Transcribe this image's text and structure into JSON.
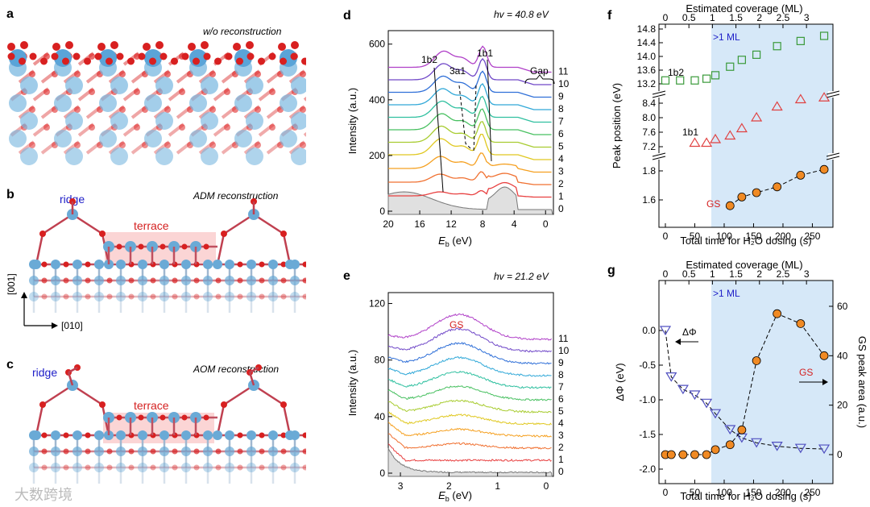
{
  "panels": {
    "a": {
      "label": "a",
      "title": "w/o reconstruction"
    },
    "b": {
      "label": "b",
      "title": "ADM reconstruction",
      "ridge": "ridge",
      "terrace": "terrace",
      "axis_v": "[001]",
      "axis_h": "[010]"
    },
    "c": {
      "label": "c",
      "title": "AOM reconstruction",
      "ridge": "ridge",
      "terrace": "terrace"
    },
    "d": {
      "label": "d",
      "hv": "hv = 40.8 eV",
      "peaks": [
        "1b2",
        "3a1",
        "1b1"
      ],
      "gap": "Gap",
      "ylabel": "Intensity (a.u.)",
      "xlabel": "E",
      "xlabel_sub": "b",
      "xlabel_unit": " (eV)",
      "yticks": [
        "0",
        "200",
        "400",
        "600"
      ],
      "xticks": [
        "20",
        "16",
        "12",
        "8",
        "4",
        "0"
      ],
      "curve_labels": [
        "0",
        "1",
        "2",
        "3",
        "4",
        "5",
        "6",
        "7",
        "8",
        "9",
        "10",
        "11"
      ]
    },
    "e": {
      "label": "e",
      "hv": "hv = 21.2 eV",
      "gs": "GS",
      "ylabel": "Intensity (a.u.)",
      "xlabel": "E",
      "xlabel_sub": "b",
      "xlabel_unit": " (eV)",
      "yticks": [
        "0",
        "40",
        "80",
        "120"
      ],
      "xticks": [
        "3",
        "2",
        "1",
        "0"
      ],
      "curve_labels": [
        "0",
        "1",
        "2",
        "3",
        "4",
        "5",
        "6",
        "7",
        "8",
        "9",
        "10",
        "11"
      ]
    },
    "f": {
      "label": "f",
      "top_title": "Estimated coverage (ML)",
      "top_ticks": [
        "0",
        "0.5",
        "1",
        "1.5",
        "2",
        "2.5",
        "3"
      ],
      "region": ">1 ML",
      "ylabel": "Peak position (eV)",
      "xlabel": "Total time for H₂O dosing (s)",
      "xticks": [
        "0",
        "50",
        "100",
        "150",
        "200",
        "250"
      ],
      "yticks_top": [
        "13.2",
        "13.6",
        "14.0",
        "14.4",
        "14.8"
      ],
      "yticks_mid": [
        "7.2",
        "7.6",
        "8.0",
        "8.4"
      ],
      "yticks_bot": [
        "1.6",
        "1.8"
      ],
      "series_labels": [
        "1b2",
        "1b1",
        "GS"
      ]
    },
    "g": {
      "label": "g",
      "top_title": "Estimated coverage (ML)",
      "top_ticks": [
        "0",
        "0.5",
        "1",
        "1.5",
        "2",
        "2.5",
        "3"
      ],
      "region": ">1 ML",
      "ylabel_left": "ΔΦ  (eV)",
      "ylabel_right": "GS peak area (a.u.)",
      "xlabel": "Total time for H₂O dosing (s)",
      "xticks": [
        "0",
        "50",
        "100",
        "150",
        "200",
        "250"
      ],
      "yticks_left": [
        "0.0",
        "-0.5",
        "-1.0",
        "-1.5",
        "-2.0"
      ],
      "yticks_right": [
        "60",
        "40",
        "20",
        "0"
      ],
      "series_labels": [
        "ΔΦ",
        "GS"
      ]
    }
  },
  "watermark": "大数跨境",
  "colors": {
    "blue_region": "#d6e8f8",
    "green": "#3a9a3a",
    "red": "#e04040",
    "orange": "#f08a24",
    "purple": "#5050c0"
  },
  "chart_data": [
    {
      "type": "line",
      "panel": "f",
      "title": "",
      "xlabel": "Total time for H2O dosing (s)",
      "ylabel": "Peak position (eV)",
      "series": [
        {
          "name": "1b2",
          "x": [
            0,
            25,
            50,
            70,
            85,
            110,
            130,
            155,
            190,
            230,
            270
          ],
          "values": [
            13.3,
            13.3,
            13.3,
            13.35,
            13.45,
            13.7,
            13.9,
            14.05,
            14.3,
            14.45,
            14.6
          ]
        },
        {
          "name": "1b1",
          "x": [
            50,
            70,
            85,
            110,
            130,
            155,
            190,
            230,
            270
          ],
          "values": [
            7.3,
            7.3,
            7.4,
            7.5,
            7.7,
            8.0,
            8.3,
            8.5,
            8.55
          ]
        },
        {
          "name": "GS",
          "x": [
            110,
            130,
            155,
            190,
            230,
            270
          ],
          "values": [
            1.56,
            1.62,
            1.65,
            1.69,
            1.77,
            1.81
          ]
        }
      ]
    },
    {
      "type": "line",
      "panel": "g",
      "title": "",
      "xlabel": "Total time for H2O dosing (s)",
      "ylabel": "ΔΦ (eV)",
      "series": [
        {
          "name": "ΔΦ",
          "x": [
            0,
            10,
            30,
            50,
            70,
            85,
            110,
            130,
            155,
            190,
            230,
            270
          ],
          "values": [
            0.0,
            -0.67,
            -0.85,
            -0.93,
            -1.05,
            -1.2,
            -1.43,
            -1.55,
            -1.62,
            -1.67,
            -1.7,
            -1.71
          ]
        },
        {
          "name": "GS peak area",
          "x": [
            0,
            10,
            30,
            50,
            70,
            85,
            110,
            130,
            155,
            190,
            230,
            270
          ],
          "values": [
            0,
            0,
            0,
            0,
            0,
            2,
            4,
            10,
            38,
            57,
            53,
            40
          ]
        }
      ]
    }
  ]
}
